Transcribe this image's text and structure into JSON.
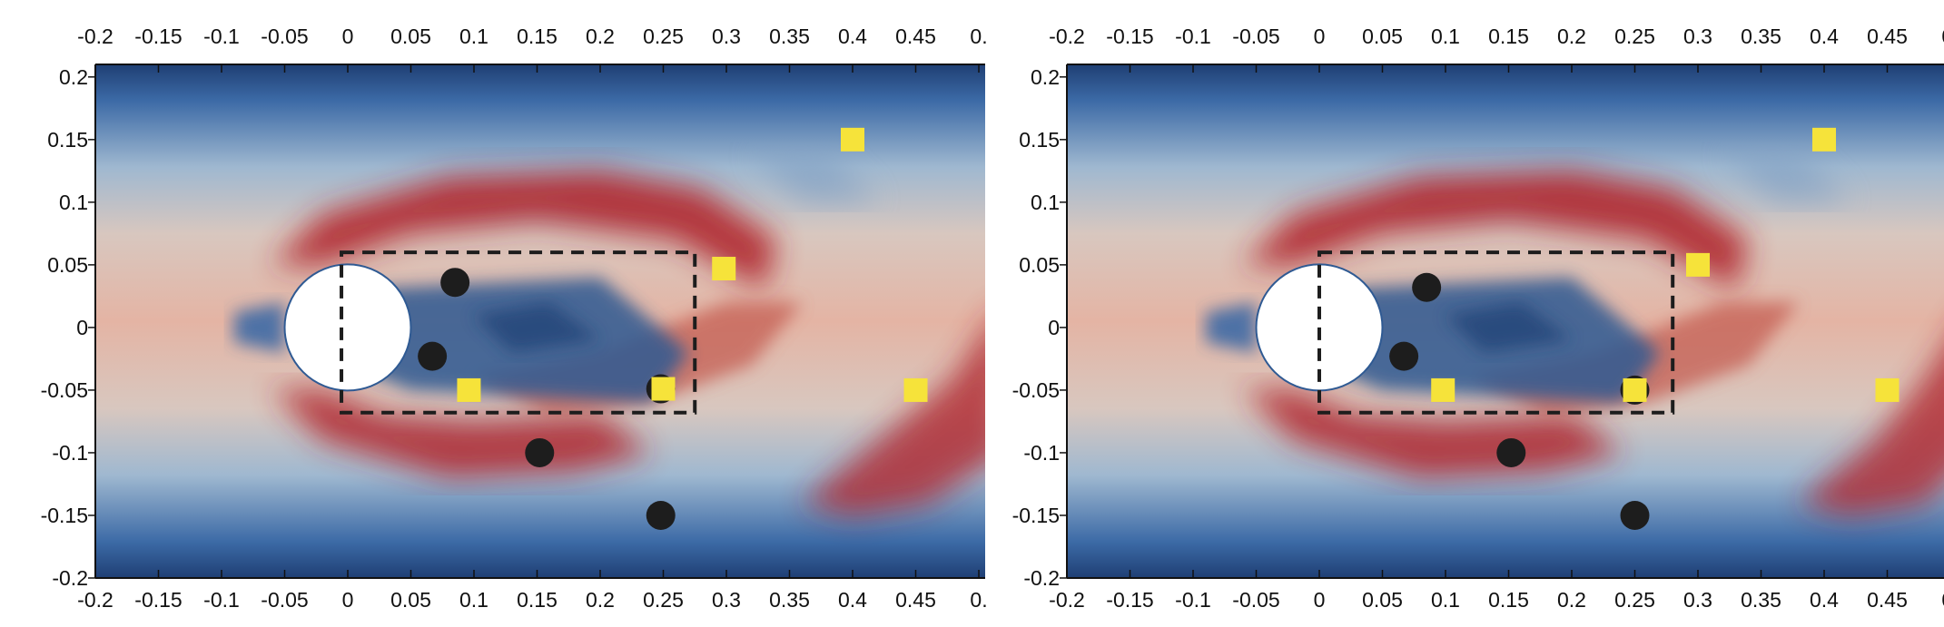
{
  "chart_data": [
    {
      "type": "scatter",
      "title": "",
      "xlabel": "",
      "ylabel": "",
      "xlim": [
        -0.2,
        0.5
      ],
      "ylim": [
        -0.2,
        0.2
      ],
      "x_ticks": [
        "-0.2",
        "-0.15",
        "-0.1",
        "-0.05",
        "0",
        "0.05",
        "0.1",
        "0.15",
        "0.2",
        "0.25",
        "0.3",
        "0.35",
        "0.4",
        "0.45",
        "0."
      ],
      "y_ticks": [
        "0.2",
        "0.15",
        "0.1",
        "0.05",
        "0",
        "-0.05",
        "-0.1",
        "-0.15",
        "-0.2"
      ],
      "cylinder": {
        "center": [
          0,
          0
        ],
        "radius": 0.05
      },
      "dashed_box": {
        "x": [
          -0.005,
          0.275
        ],
        "y": [
          -0.068,
          0.06
        ]
      },
      "black_circles": [
        [
          0.085,
          0.036
        ],
        [
          0.067,
          -0.023
        ],
        [
          0.248,
          -0.049
        ],
        [
          0.152,
          -0.1
        ],
        [
          0.248,
          -0.15
        ]
      ],
      "yellow_squares": [
        [
          0.096,
          -0.05
        ],
        [
          0.25,
          -0.049
        ],
        [
          0.298,
          0.047
        ],
        [
          0.4,
          0.15
        ],
        [
          0.45,
          -0.05
        ]
      ],
      "colors": {
        "high_velocity": "#b0282e",
        "mid": "#c7d2dc",
        "low_velocity": "#1f3f74",
        "marker_circle": "#1d1d1d",
        "marker_square": "#f6e33a"
      }
    },
    {
      "type": "scatter",
      "title": "",
      "xlabel": "",
      "ylabel": "",
      "xlim": [
        -0.2,
        0.5
      ],
      "ylim": [
        -0.2,
        0.2
      ],
      "x_ticks": [
        "-0.2",
        "-0.15",
        "-0.1",
        "-0.05",
        "0",
        "0.05",
        "0.1",
        "0.15",
        "0.2",
        "0.25",
        "0.3",
        "0.35",
        "0.4",
        "0.45",
        "0."
      ],
      "y_ticks": [
        "0.2",
        "0.15",
        "0.1",
        "0.05",
        "0",
        "-0.05",
        "-0.1",
        "-0.15",
        "-0.2"
      ],
      "cylinder": {
        "center": [
          0,
          0
        ],
        "radius": 0.05
      },
      "dashed_box": {
        "x": [
          0,
          0.28
        ],
        "y": [
          -0.068,
          0.06
        ]
      },
      "black_circles": [
        [
          0.085,
          0.032
        ],
        [
          0.067,
          -0.023
        ],
        [
          0.25,
          -0.05
        ],
        [
          0.152,
          -0.1
        ],
        [
          0.25,
          -0.15
        ]
      ],
      "yellow_squares": [
        [
          0.098,
          -0.05
        ],
        [
          0.25,
          -0.05
        ],
        [
          0.3,
          0.05
        ],
        [
          0.4,
          0.15
        ],
        [
          0.45,
          -0.05
        ]
      ],
      "colors": {
        "high_velocity": "#b0282e",
        "mid": "#c7d2dc",
        "low_velocity": "#1f3f74",
        "marker_circle": "#1d1d1d",
        "marker_square": "#f6e33a"
      }
    }
  ]
}
